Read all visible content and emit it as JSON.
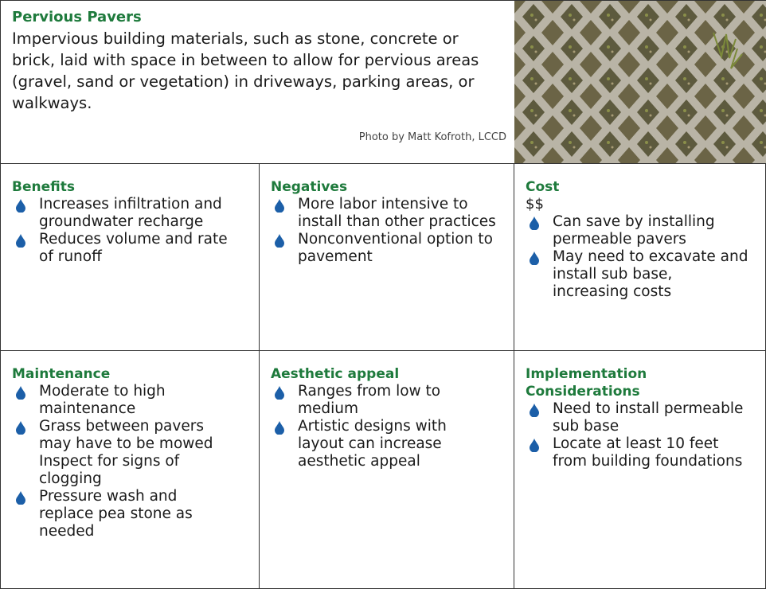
{
  "header": {
    "title": "Pervious Pavers",
    "description": "Impervious building materials, such as stone, concrete or brick, laid with space in between to allow for pervious areas (gravel, sand or vegetation) in driveways, parking areas, or walkways.",
    "photo_credit": "Photo by Matt Kofroth, LCCD"
  },
  "cells": [
    {
      "title": "Benefits",
      "items": [
        "Increases infiltration and groundwater recharge",
        "Reduces volume and rate of runoff"
      ]
    },
    {
      "title": "Negatives",
      "items": [
        "More labor intensive to install than other practices",
        "Nonconventional option to pavement"
      ]
    },
    {
      "title": "Cost",
      "subtitle": "$$",
      "items": [
        "Can save by installing permeable pavers",
        "May need to excavate and install sub base, increasing costs"
      ]
    },
    {
      "title": "Maintenance",
      "items": [
        "Moderate to high maintenance",
        "Grass between pavers may have to be mowed Inspect for signs of clogging",
        "Pressure wash and replace pea stone as needed"
      ]
    },
    {
      "title": "Aesthetic appeal",
      "items": [
        "Ranges from low to medium",
        "Artistic designs with layout can increase aesthetic appeal"
      ]
    },
    {
      "title": "Implementation Considerations",
      "items": [
        "Need to install permeable sub base",
        "Locate at least 10 feet from building foundations"
      ]
    }
  ]
}
